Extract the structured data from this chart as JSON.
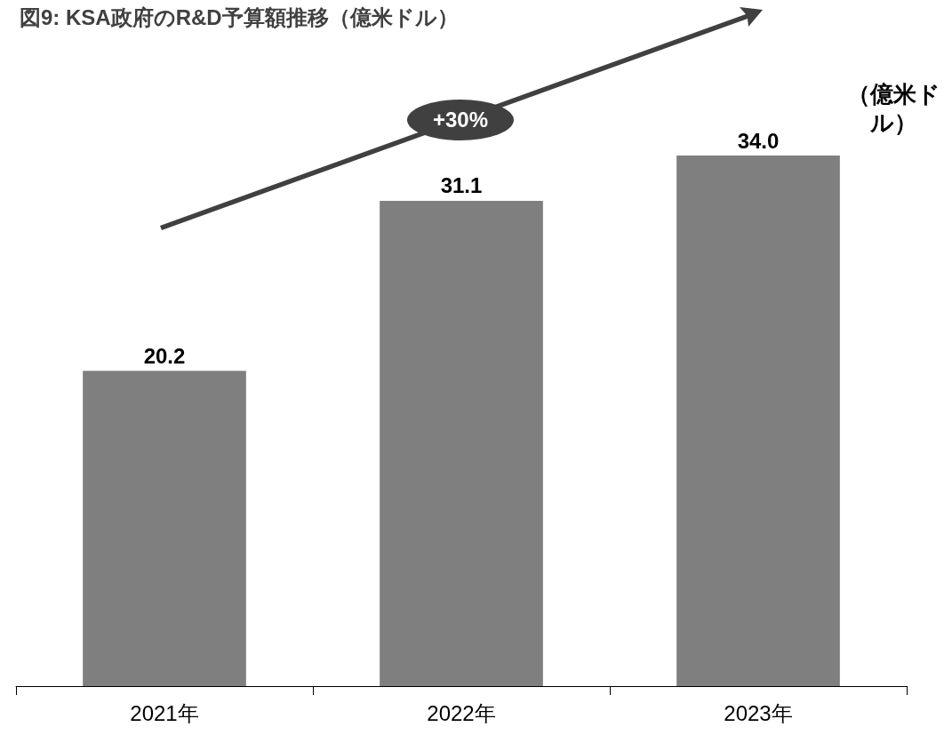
{
  "chart_data": {
    "type": "bar",
    "title": "図9: KSA政府のR&D予算額推移（億米ドル）",
    "ylabel": "（億米ドル）",
    "categories": [
      "2021年",
      "2022年",
      "2023年"
    ],
    "values": [
      20.2,
      31.1,
      34.0
    ],
    "value_labels": [
      "20.2",
      "31.1",
      "34.0"
    ],
    "color": "#7f7f7f",
    "grid": false,
    "annotations": [
      "+30%"
    ]
  }
}
